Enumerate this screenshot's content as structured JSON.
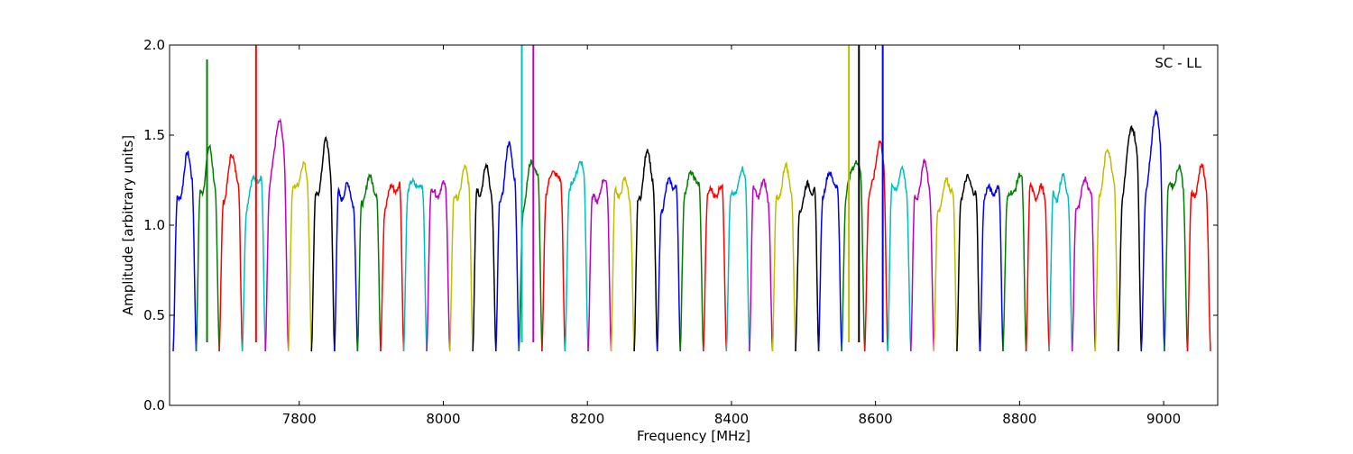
{
  "chart_data": {
    "type": "line",
    "title": "",
    "annotation": "SC - LL",
    "xlabel": "Frequency [MHz]",
    "ylabel": "Amplitude [arbitrary units]",
    "xlim": [
      7620,
      9075
    ],
    "ylim": [
      0.0,
      2.0
    ],
    "x_ticks": [
      7800,
      8000,
      8200,
      8400,
      8600,
      8800,
      9000
    ],
    "x_tick_labels": [
      "7800",
      "8000",
      "8200",
      "8400",
      "8600",
      "8800",
      "9000"
    ],
    "y_ticks": [
      0.0,
      0.5,
      1.0,
      1.5,
      2.0
    ],
    "y_tick_labels": [
      "0.0",
      "0.5",
      "1.0",
      "1.5",
      "2.0"
    ],
    "grid": false,
    "legend": "none",
    "color_cycle": [
      "#0000ff",
      "#008000",
      "#ff0000",
      "#00bfbf",
      "#bf00bf",
      "#bfbf00",
      "#000000"
    ],
    "band_width_mhz": 32,
    "band_floor": 0.3,
    "band_start_mhz": 7625,
    "band_count": 45,
    "band_peaks": [
      1.35,
      1.41,
      1.38,
      1.27,
      1.62,
      1.33,
      1.43,
      1.2,
      1.25,
      1.21,
      1.26,
      1.21,
      1.27,
      1.3,
      1.43,
      1.35,
      1.33,
      1.36,
      1.2,
      1.23,
      1.39,
      1.23,
      1.31,
      1.2,
      1.27,
      1.22,
      1.3,
      1.2,
      1.3,
      1.38,
      1.44,
      1.3,
      1.32,
      1.22,
      1.26,
      1.21,
      1.24,
      1.2,
      1.24,
      1.22,
      1.43,
      1.58,
      1.64,
      1.32,
      1.3
    ],
    "spikes": [
      {
        "x": 7672,
        "y": 1.92
      },
      {
        "x": 7740,
        "y": 2.0
      },
      {
        "x": 8109,
        "y": 2.0
      },
      {
        "x": 8125,
        "y": 2.0
      },
      {
        "x": 8563,
        "y": 2.0
      },
      {
        "x": 8577,
        "y": 2.0
      },
      {
        "x": 8610,
        "y": 2.0
      }
    ]
  }
}
